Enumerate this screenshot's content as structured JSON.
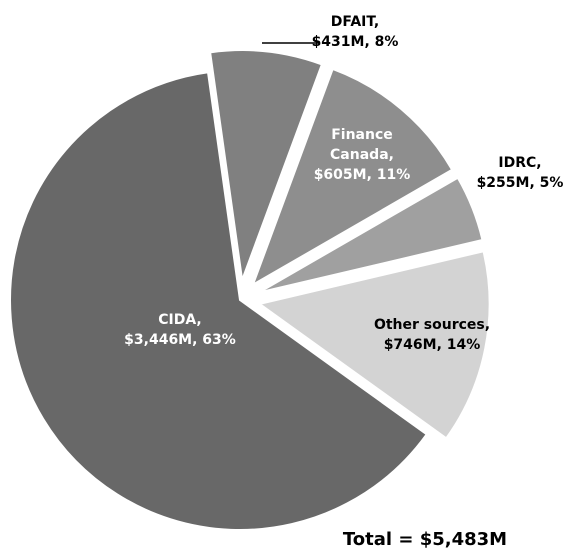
{
  "chart_data": {
    "type": "pie",
    "categories": [
      "DFAIT,",
      "Finance Canada,",
      "IDRC,",
      "Other sources,",
      "CIDA,"
    ],
    "values": [
      431,
      605,
      255,
      746,
      3446
    ],
    "value_labels": [
      "$431M, 8%",
      "$605M, 11%",
      "$255M, 5%",
      "$746M, 14%",
      "$3,446M, 63%"
    ],
    "colors": [
      "#808080",
      "#8e8e8e",
      "#a0a0a0",
      "#d3d3d3",
      "#686868"
    ],
    "exploded": [
      true,
      true,
      true,
      true,
      false
    ],
    "annotation": "Total = $5,483M"
  }
}
